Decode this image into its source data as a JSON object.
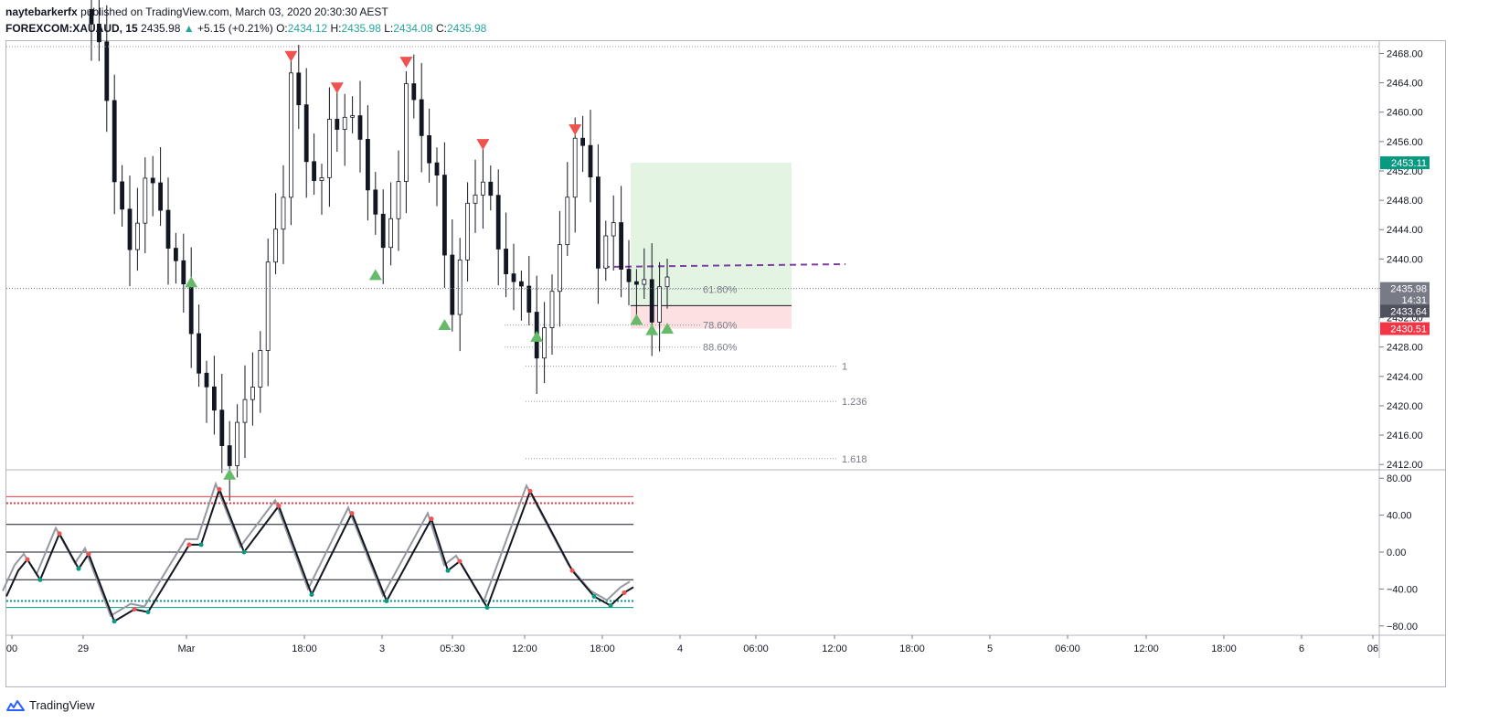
{
  "header": {
    "author": "naytebarkerfx",
    "published": "published on TradingView.com, March 03, 2020 20:30:30 AEST",
    "symbol": "FOREXCOM:XAUAUD, 15",
    "last": "2435.98",
    "change": "+5.15 (+0.21%)",
    "o_label": "O:",
    "o": "2434.12",
    "h_label": "H:",
    "h": "2435.98",
    "l_label": "L:",
    "l": "2434.08",
    "c_label": "C:",
    "c": "2435.98"
  },
  "price_axis": {
    "ticks": [
      "2468.00",
      "2464.00",
      "2460.00",
      "2456.00",
      "2452.00",
      "2448.00",
      "2444.00",
      "2440.00",
      "2436.00",
      "2432.00",
      "2428.00",
      "2424.00",
      "2420.00",
      "2416.00",
      "2412.00"
    ],
    "badges": [
      {
        "label": "2453.11",
        "price": 2453.11,
        "color": "#089981"
      },
      {
        "label": "2435.98",
        "price": 2435.98,
        "color": "#787b86"
      },
      {
        "label": "14:31",
        "price": 2434.45,
        "color": "#787b86"
      },
      {
        "label": "2433.64",
        "price": 2432.9,
        "color": "#50535e"
      },
      {
        "label": "2430.51",
        "price": 2430.51,
        "color": "#f23645"
      }
    ]
  },
  "osc_axis": {
    "ticks": [
      "80.00",
      "40.00",
      "0.00",
      "−40.00",
      "−80.00"
    ]
  },
  "time_axis": {
    "ticks": [
      "00",
      "29",
      "Mar",
      "18:00",
      "3",
      "05:30",
      "12:00",
      "18:00",
      "4",
      "06:00",
      "12:00",
      "18:00",
      "5",
      "06:00",
      "12:00",
      "18:00",
      "6",
      "06"
    ]
  },
  "fib_levels": [
    {
      "label": "61.80%",
      "price": 2435.9
    },
    {
      "label": "78.60%",
      "price": 2431.0
    },
    {
      "label": "88.60%",
      "price": 2428.0
    },
    {
      "label": "1",
      "price": 2425.4
    },
    {
      "label": "1.236",
      "price": 2420.6
    },
    {
      "label": "1.618",
      "price": 2412.8
    }
  ],
  "position": {
    "entry": 2433.64,
    "target": 2453.11,
    "stop": 2430.51
  },
  "signals": {
    "down": [
      {
        "bar": 26,
        "price": 2466.6
      },
      {
        "bar": 32,
        "price": 2462.3
      },
      {
        "bar": 41,
        "price": 2465.8
      },
      {
        "bar": 51,
        "price": 2454.6
      },
      {
        "bar": 63,
        "price": 2456.6
      }
    ],
    "up": [
      {
        "bar": 13,
        "price": 2438.0
      },
      {
        "bar": 18,
        "price": 2411.8
      },
      {
        "bar": 37,
        "price": 2439.0
      },
      {
        "bar": 46,
        "price": 2432.2
      },
      {
        "bar": 58,
        "price": 2430.6
      },
      {
        "bar": 71,
        "price": 2432.9
      },
      {
        "bar": 73,
        "price": 2431.5
      },
      {
        "bar": 75,
        "price": 2431.7
      }
    ]
  },
  "osc_levels": {
    "upper_solid": 60,
    "upper_dotted": 53,
    "mid_high": 30,
    "zero": 0,
    "mid_low": -30,
    "lower_dotted": -53,
    "lower_solid": -60
  },
  "footer": {
    "brand": "TradingView"
  },
  "colors": {
    "bull": "#089981",
    "bear": "#f23645",
    "profit_zone": "#e3f4e3",
    "loss_zone": "#fde0e2",
    "dashed_purple": "#7e3fa3"
  }
}
